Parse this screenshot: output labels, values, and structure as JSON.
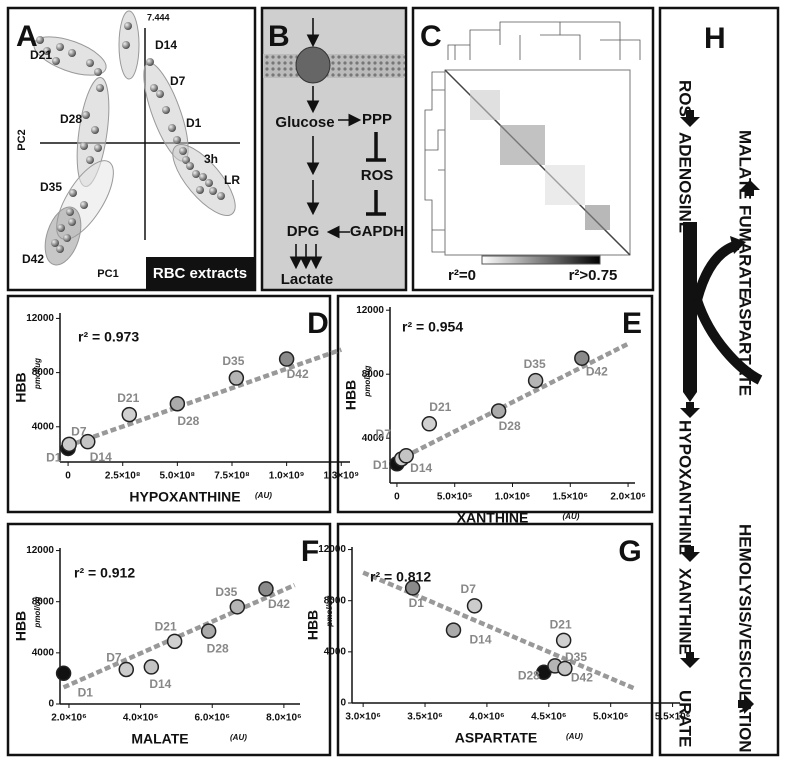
{
  "panels": {
    "A": {
      "letter": "A",
      "max_label": "7.444",
      "groups": [
        "D21",
        "D14",
        "D7",
        "D28",
        "D1",
        "3h",
        "LR",
        "D35",
        "D42"
      ],
      "y_axis": "PC2",
      "x_axis": "PC1",
      "caption": "RBC extracts"
    },
    "B": {
      "letter": "B",
      "nodes": [
        "Glucose",
        "PPP",
        "ROS",
        "DPG",
        "GAPDH",
        "Lactate"
      ]
    },
    "C": {
      "letter": "C",
      "scale_min": "r²=0",
      "scale_max": "r²>0.75"
    },
    "H": {
      "letter": "H",
      "left_column": [
        "ROS",
        "ADENOSINE",
        "HYPOXANTHINE",
        "XANTHINE",
        "URATE"
      ],
      "middle_column": [
        "MALATE",
        "FUMARATE",
        "ASPARTATE"
      ],
      "right_column": [
        "HEMOLYSIS/VESICULATION"
      ]
    }
  },
  "chart_data": [
    {
      "type": "scatter",
      "letter": "D",
      "r2_label": "r² = 0.973",
      "xlabel": "HYPOXANTHINE",
      "xunit": "(AU)",
      "ylabel": "HBB",
      "yunit": "pmol/ug",
      "point_labels": [
        "D1",
        "D7",
        "D14",
        "D21",
        "D28",
        "D35",
        "D42"
      ],
      "colors": [
        "#111111",
        "#cccccc",
        "#c4c4c4",
        "#d0d0d0",
        "#aaaaaa",
        "#b5b5b5",
        "#8a8a8a"
      ],
      "x": [
        0,
        5000000,
        90000000,
        280000000,
        500000000,
        770000000,
        1000000000
      ],
      "values": [
        2400,
        2700,
        2900,
        4900,
        5700,
        7600,
        9000
      ],
      "trend": {
        "x": [
          0,
          1250000000
        ],
        "values": [
          2600,
          9700
        ]
      },
      "xlim": [
        -37000000,
        1290000000
      ],
      "ylim": [
        1400,
        12400
      ],
      "xticks": [
        0,
        {
          "value": 250000000,
          "label": "2.5×10⁸"
        },
        {
          "value": 500000000,
          "label": "5.0×10⁸"
        },
        {
          "value": 750000000,
          "label": "7.5×10⁸"
        },
        {
          "value": 1000000000,
          "label": "1.0×10⁹"
        },
        {
          "value": 1250000000,
          "label": "1.3×10⁹"
        }
      ],
      "yticks": [
        4000,
        8000,
        12000
      ]
    },
    {
      "type": "scatter",
      "letter": "E",
      "r2_label": "r² = 0.954",
      "xlabel": "XANTHINE",
      "xunit": "(AU)",
      "ylabel": "HBB",
      "yunit": "pmol/ug",
      "point_labels": [
        "D1",
        "D7",
        "D14",
        "D21",
        "D28",
        "D35",
        "D42"
      ],
      "colors": [
        "#111111",
        "#cccccc",
        "#c4c4c4",
        "#d0d0d0",
        "#aaaaaa",
        "#b5b5b5",
        "#8a8a8a"
      ],
      "x": [
        0,
        40000,
        80000,
        280000,
        880000,
        1200000,
        1600000
      ],
      "values": [
        2400,
        2700,
        2900,
        4900,
        5700,
        7600,
        9000
      ],
      "trend": {
        "x": [
          0,
          2000000
        ],
        "values": [
          2600,
          9900
        ]
      },
      "xlim": [
        -60000,
        2060000
      ],
      "ylim": [
        1200,
        12200
      ],
      "xticks": [
        0,
        {
          "value": 500000,
          "label": "5.0×10⁵"
        },
        {
          "value": 1000000,
          "label": "1.0×10⁶"
        },
        {
          "value": 1500000,
          "label": "1.5×10⁶"
        },
        {
          "value": 2000000,
          "label": "2.0×10⁶"
        }
      ],
      "yticks": [
        4000,
        8000,
        12000
      ]
    },
    {
      "type": "scatter",
      "letter": "F",
      "r2_label": "r² = 0.912",
      "xlabel": "MALATE",
      "xunit": "(AU)",
      "ylabel": "HBB",
      "yunit": "pmol/ug",
      "point_labels": [
        "D1",
        "D7",
        "D14",
        "D21",
        "D28",
        "D35",
        "D42"
      ],
      "colors": [
        "#111111",
        "#cccccc",
        "#c4c4c4",
        "#d0d0d0",
        "#aaaaaa",
        "#b5b5b5",
        "#8a8a8a"
      ],
      "x": [
        1850000,
        3600000,
        4300000,
        4950000,
        5900000,
        6700000,
        7500000
      ],
      "values": [
        2400,
        2700,
        2900,
        4900,
        5700,
        7600,
        9000
      ],
      "trend": {
        "x": [
          1850000,
          8300000
        ],
        "values": [
          1300,
          9300
        ]
      },
      "xlim": [
        1750000,
        8450000
      ],
      "ylim": [
        0,
        12200
      ],
      "xticks": [
        {
          "value": 2000000,
          "label": "2.0×10⁶"
        },
        {
          "value": 4000000,
          "label": "4.0×10⁶"
        },
        {
          "value": 6000000,
          "label": "6.0×10⁶"
        },
        {
          "value": 8000000,
          "label": "8.0×10⁶"
        }
      ],
      "yticks": [
        0,
        4000,
        8000,
        12000
      ]
    },
    {
      "type": "scatter",
      "letter": "G",
      "r2_label": "r² = 0.812",
      "xlabel": "ASPARTATE",
      "xunit": "(AU)",
      "ylabel": "HBB",
      "yunit": "pmol/ug",
      "point_labels": [
        "D1",
        "D7",
        "D14",
        "D21",
        "D28",
        "D35",
        "D42"
      ],
      "colors": [
        "#8a8a8a",
        "#cccccc",
        "#aaaaaa",
        "#d0d0d0",
        "#111111",
        "#b5b5b5",
        "#c4c4c4"
      ],
      "x": [
        3400000,
        3900000,
        3730000,
        4620000,
        4460000,
        4550000,
        4630000
      ],
      "values": [
        9000,
        7600,
        5700,
        4900,
        2400,
        2900,
        2700
      ],
      "trend": {
        "x": [
          3000000,
          5200000
        ],
        "values": [
          10200,
          1100
        ]
      },
      "xlim": [
        2910000,
        5560000
      ],
      "ylim": [
        0,
        12200
      ],
      "xticks": [
        {
          "value": 3000000,
          "label": "3.0×10⁶"
        },
        {
          "value": 3500000,
          "label": "3.5×10⁶"
        },
        {
          "value": 4000000,
          "label": "4.0×10⁶"
        },
        {
          "value": 4500000,
          "label": "4.5×10⁶"
        },
        {
          "value": 5000000,
          "label": "5.0×10⁶"
        },
        {
          "value": 5500000,
          "label": "5.5×10⁶"
        }
      ],
      "yticks": [
        0,
        4000,
        8000,
        12000
      ]
    }
  ]
}
